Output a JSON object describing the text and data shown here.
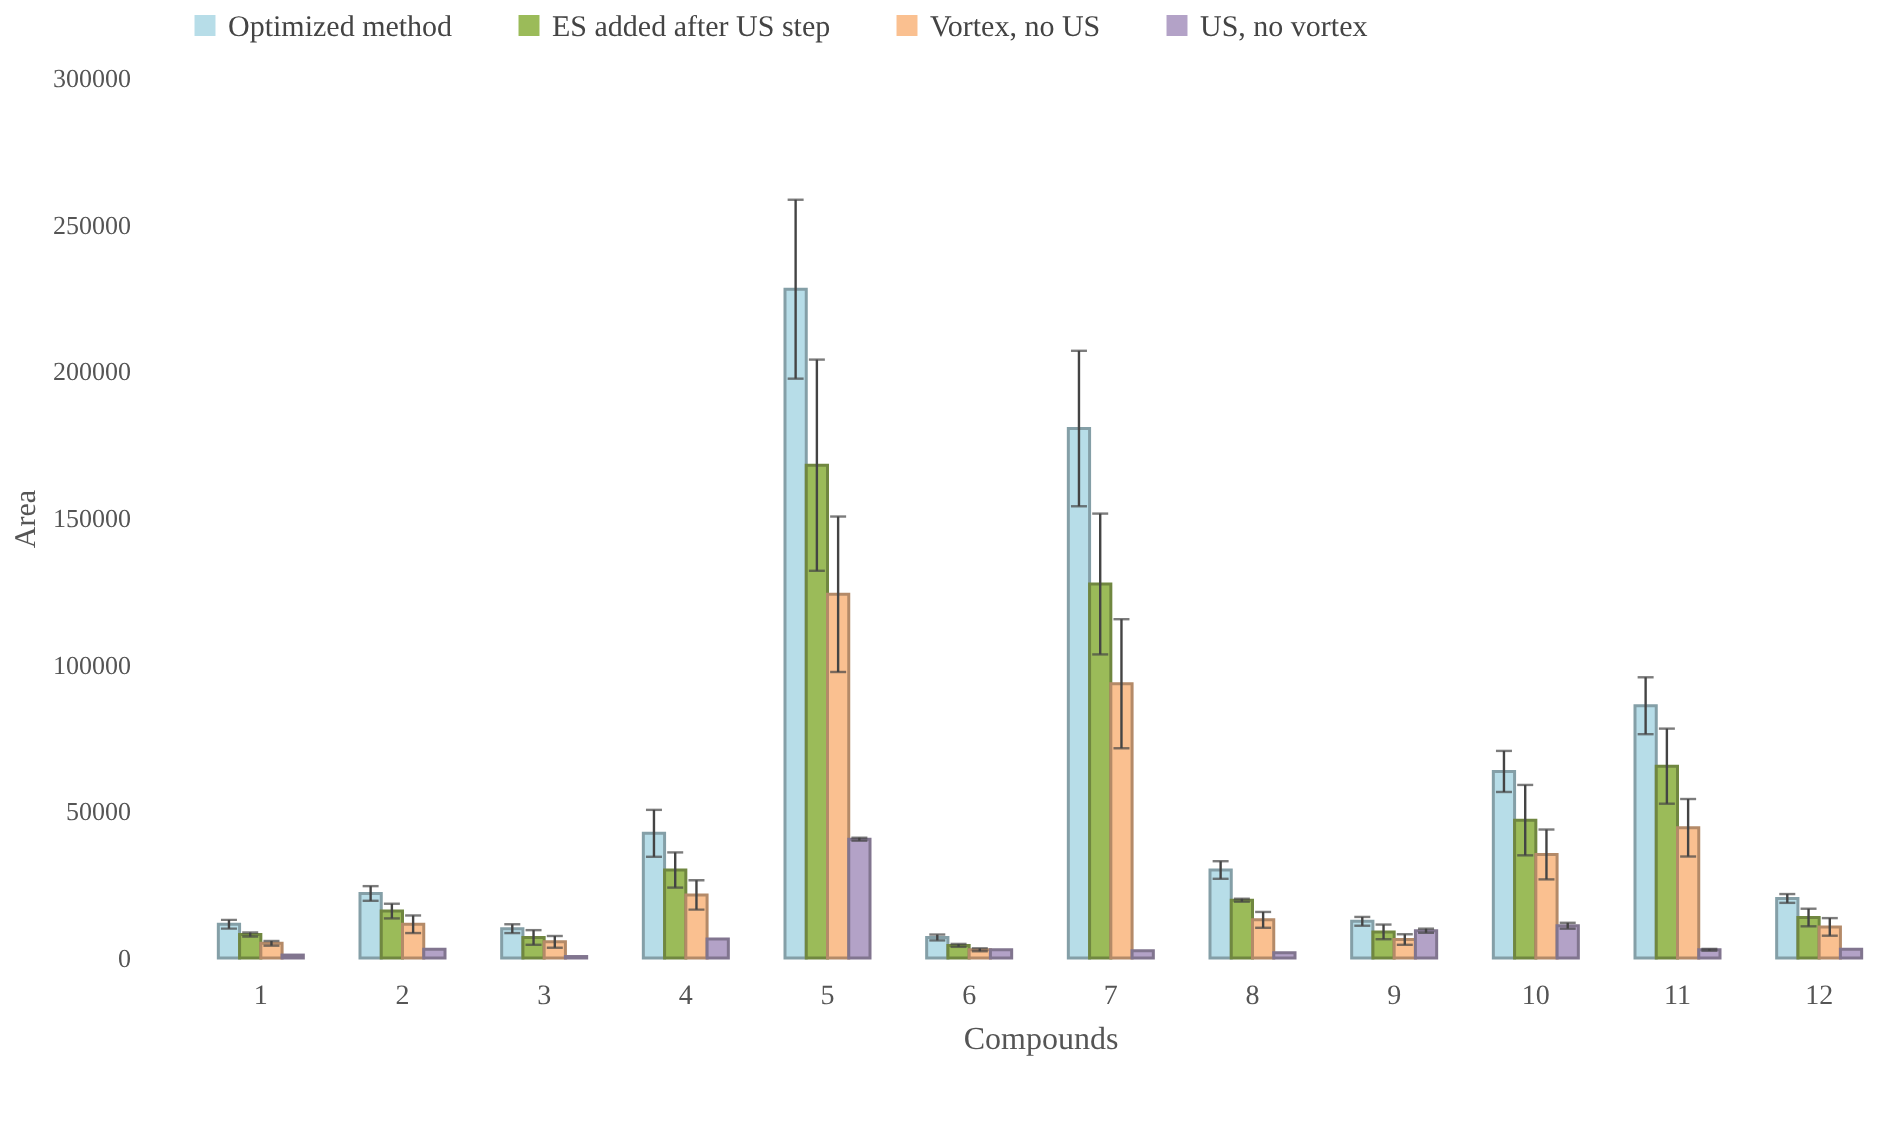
{
  "chart_data": {
    "type": "bar",
    "xlabel": "Compounds",
    "ylabel": "Area",
    "categories": [
      "1",
      "2",
      "3",
      "4",
      "5",
      "6",
      "7",
      "8",
      "9",
      "10",
      "11",
      "12"
    ],
    "ylim": [
      0,
      300000
    ],
    "yticks": [
      0,
      50000,
      100000,
      150000,
      200000,
      250000,
      300000
    ],
    "legend": "top",
    "grid": false,
    "series": [
      {
        "name": "Optimized method",
        "color": "#b7dde8",
        "values": [
          11500,
          22000,
          10000,
          42500,
          228000,
          7000,
          180500,
          30000,
          12500,
          63600,
          86000,
          20300
        ],
        "errors": [
          1500,
          2500,
          1500,
          8000,
          30500,
          1000,
          26500,
          3000,
          1500,
          7000,
          9700,
          1500
        ]
      },
      {
        "name": "ES added after US step",
        "color": "#9bbb59",
        "values": [
          8000,
          16000,
          7000,
          30000,
          168000,
          4300,
          127500,
          19700,
          8900,
          47000,
          65400,
          13800
        ],
        "errors": [
          700,
          2500,
          2500,
          6000,
          36000,
          500,
          24000,
          500,
          2500,
          12000,
          12800,
          3000
        ]
      },
      {
        "name": "Vortex, no US",
        "color": "#fac090",
        "values": [
          5000,
          11500,
          5500,
          21500,
          124000,
          2800,
          93500,
          13000,
          6300,
          35300,
          44400,
          10600
        ],
        "errors": [
          800,
          3000,
          2000,
          5000,
          26500,
          500,
          22000,
          2700,
          1800,
          8500,
          9800,
          3000
        ]
      },
      {
        "name": "US, no vortex",
        "color": "#b3a2c7",
        "values": [
          1000,
          3000,
          500,
          6500,
          40500,
          2800,
          2500,
          1800,
          9300,
          11000,
          2800,
          3000
        ],
        "errors": [
          null,
          null,
          null,
          null,
          500,
          null,
          null,
          null,
          700,
          1000,
          300,
          null
        ]
      }
    ]
  }
}
